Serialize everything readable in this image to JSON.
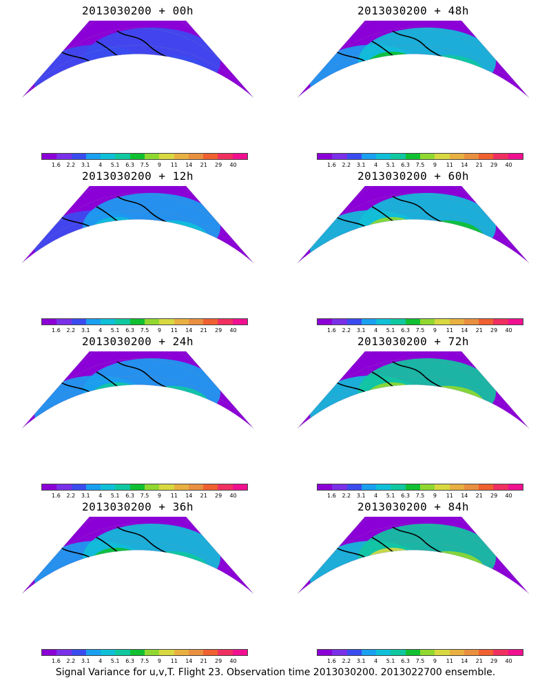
{
  "caption": "Signal Variance for u,v,T. Flight 23. Observation time 2013030200. 2013022700 ensemble.",
  "panels": [
    {
      "title": "2013030200  +  00h",
      "intensity": 0.15
    },
    {
      "title": "2013030200  +  48h",
      "intensity": 0.55
    },
    {
      "title": "2013030200  +  12h",
      "intensity": 0.35
    },
    {
      "title": "2013030200  +  60h",
      "intensity": 0.65
    },
    {
      "title": "2013030200  +  24h",
      "intensity": 0.45
    },
    {
      "title": "2013030200  +  72h",
      "intensity": 0.7
    },
    {
      "title": "2013030200  +  36h",
      "intensity": 0.5
    },
    {
      "title": "2013030200  +  84h",
      "intensity": 0.75
    }
  ],
  "colorbar": {
    "colors": [
      "#8b00d6",
      "#7a30e8",
      "#3a4cf0",
      "#1aa0f0",
      "#10c0d8",
      "#10c8a0",
      "#10c030",
      "#90d830",
      "#d8d840",
      "#e8b040",
      "#e89040",
      "#f06030",
      "#f03060",
      "#f01090"
    ],
    "labels": [
      "1.6",
      "2.2",
      "3.1",
      "4",
      "5.1",
      "6.3",
      "7.5",
      "9",
      "11",
      "14",
      "21",
      "29",
      "40"
    ]
  }
}
